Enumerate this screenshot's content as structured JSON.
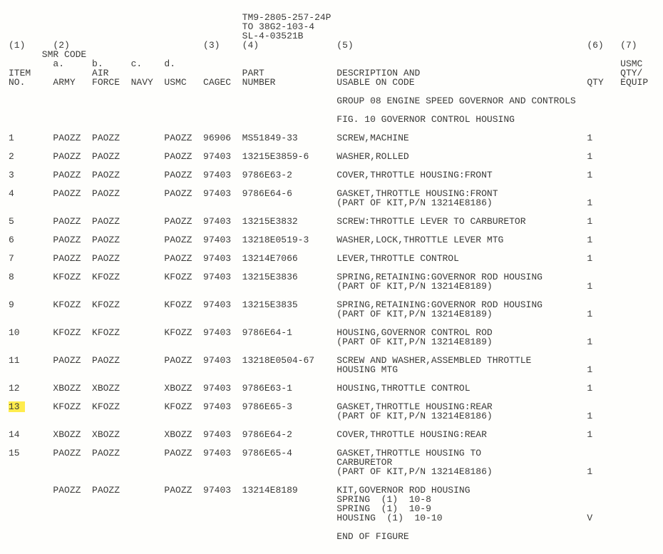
{
  "doc_ids": [
    "TM9-2805-257-24P",
    "TO 38G2-103-4",
    "SL-4-03521B"
  ],
  "top_cols": [
    "(1)",
    "(2)",
    "(3)",
    "(4)",
    "(5)",
    "(6)",
    "(7)"
  ],
  "smr_label": "SMR CODE",
  "sub_letters": [
    "a.",
    "b.",
    "c.",
    "d."
  ],
  "headers": {
    "item": [
      "ITEM",
      "NO."
    ],
    "army": [
      "AIR",
      "ARMY"
    ],
    "force": [
      "",
      "FORCE"
    ],
    "navy": "NAVY",
    "usmc": "USMC",
    "cagec": "CAGEC",
    "part": [
      "PART",
      "NUMBER"
    ],
    "desc": [
      "DESCRIPTION AND",
      "USABLE ON CODE"
    ],
    "qty": "QTY",
    "usmc_qty": [
      "USMC",
      "QTY/",
      "EQUIP"
    ]
  },
  "group_line": "GROUP 08 ENGINE SPEED GOVERNOR AND CONTROLS",
  "fig_line": "FIG. 10 GOVERNOR CONTROL HOUSING",
  "end_line": "END OF FIGURE",
  "columns_x": {
    "item": 0,
    "army": 8,
    "force": 15,
    "navy": 22,
    "usmc": 28,
    "cagec": 35,
    "part": 42,
    "desc": 59,
    "qty": 104,
    "equip": 110
  },
  "rows": [
    {
      "n": "1",
      "a": "PAOZZ",
      "f": "PAOZZ",
      "u": "PAOZZ",
      "c": "96906",
      "p": "MS51849-33",
      "d": [
        "SCREW,MACHINE"
      ],
      "q": "1"
    },
    {
      "n": "2",
      "a": "PAOZZ",
      "f": "PAOZZ",
      "u": "PAOZZ",
      "c": "97403",
      "p": "13215E3859-6",
      "d": [
        "WASHER,ROLLED"
      ],
      "q": "1"
    },
    {
      "n": "3",
      "a": "PAOZZ",
      "f": "PAOZZ",
      "u": "PAOZZ",
      "c": "97403",
      "p": "9786E63-2",
      "d": [
        "COVER,THROTTLE HOUSING:FRONT"
      ],
      "q": "1"
    },
    {
      "n": "4",
      "a": "PAOZZ",
      "f": "PAOZZ",
      "u": "PAOZZ",
      "c": "97403",
      "p": "9786E64-6",
      "d": [
        "GASKET,THROTTLE HOUSING:FRONT",
        "(PART OF KIT,P/N 13214E8186)"
      ],
      "q": "1"
    },
    {
      "n": "5",
      "a": "PAOZZ",
      "f": "PAOZZ",
      "u": "PAOZZ",
      "c": "97403",
      "p": "13215E3832",
      "d": [
        "SCREW:THROTTLE LEVER TO CARBURETOR"
      ],
      "q": "1"
    },
    {
      "n": "6",
      "a": "PAOZZ",
      "f": "PAOZZ",
      "u": "PAOZZ",
      "c": "97403",
      "p": "13218E0519-3",
      "d": [
        "WASHER,LOCK,THROTTLE LEVER MTG"
      ],
      "q": "1"
    },
    {
      "n": "7",
      "a": "PAOZZ",
      "f": "PAOZZ",
      "u": "PAOZZ",
      "c": "97403",
      "p": "13214E7066",
      "d": [
        "LEVER,THROTTLE CONTROL"
      ],
      "q": "1"
    },
    {
      "n": "8",
      "a": "KFOZZ",
      "f": "KFOZZ",
      "u": "KFOZZ",
      "c": "97403",
      "p": "13215E3836",
      "d": [
        "SPRING,RETAINING:GOVERNOR ROD HOUSING",
        "(PART OF KIT,P/N 13214E8189)"
      ],
      "q": "1"
    },
    {
      "n": "9",
      "a": "KFOZZ",
      "f": "KFOZZ",
      "u": "KFOZZ",
      "c": "97403",
      "p": "13215E3835",
      "d": [
        "SPRING,RETAINING:GOVERNOR ROD HOUSING",
        "(PART OF KIT,P/N 13214E8189)"
      ],
      "q": "1"
    },
    {
      "n": "10",
      "a": "KFOZZ",
      "f": "KFOZZ",
      "u": "KFOZZ",
      "c": "97403",
      "p": "9786E64-1",
      "d": [
        "HOUSING,GOVERNOR CONTROL ROD",
        "(PART OF KIT,P/N 13214E8189)"
      ],
      "q": "1"
    },
    {
      "n": "11",
      "a": "PAOZZ",
      "f": "PAOZZ",
      "u": "PAOZZ",
      "c": "97403",
      "p": "13218E0504-67",
      "d": [
        "SCREW AND WASHER,ASSEMBLED THROTTLE",
        "HOUSING MTG"
      ],
      "q": "1"
    },
    {
      "n": "12",
      "a": "XBOZZ",
      "f": "XBOZZ",
      "u": "XBOZZ",
      "c": "97403",
      "p": "9786E63-1",
      "d": [
        "HOUSING,THROTTLE CONTROL"
      ],
      "q": "1"
    },
    {
      "n": "13",
      "a": "KFOZZ",
      "f": "KFOZZ",
      "u": "KFOZZ",
      "c": "97403",
      "p": "9786E65-3",
      "d": [
        "GASKET,THROTTLE HOUSING:REAR",
        "(PART OF KIT,P/N 13214E8186)"
      ],
      "q": "1",
      "hl": true
    },
    {
      "n": "14",
      "a": "XBOZZ",
      "f": "XBOZZ",
      "u": "XBOZZ",
      "c": "97403",
      "p": "9786E64-2",
      "d": [
        "COVER,THROTTLE HOUSING:REAR"
      ],
      "q": "1"
    },
    {
      "n": "15",
      "a": "PAOZZ",
      "f": "PAOZZ",
      "u": "PAOZZ",
      "c": "97403",
      "p": "9786E65-4",
      "d": [
        "GASKET,THROTTLE HOUSING TO",
        "CARBURETOR",
        "(PART OF KIT,P/N 13214E8186)"
      ],
      "q": "1"
    },
    {
      "n": "",
      "a": "PAOZZ",
      "f": "PAOZZ",
      "u": "PAOZZ",
      "c": "97403",
      "p": "13214E8189",
      "d": [
        "KIT,GOVERNOR ROD HOUSING",
        "SPRING  (1)  10-8",
        "SPRING  (1)  10-9",
        "HOUSING  (1)  10-10"
      ],
      "q": "V"
    }
  ]
}
